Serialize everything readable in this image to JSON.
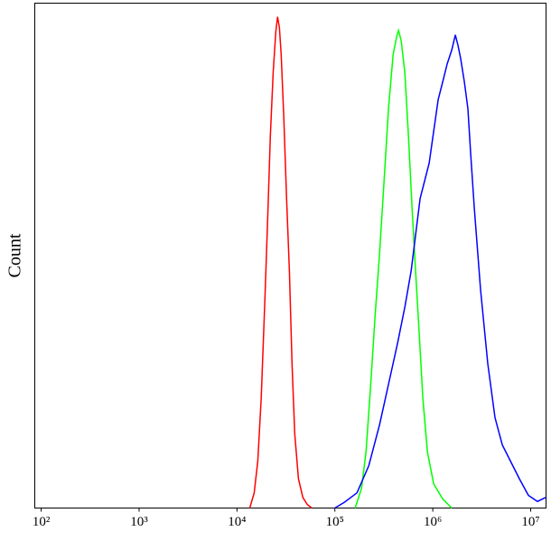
{
  "chart_data": {
    "type": "line",
    "ylabel": "Count",
    "xlog": true,
    "xlim": [
      86,
      14350000
    ],
    "ylim": [
      0,
      100
    ],
    "xticks": [
      {
        "value": 100,
        "label": "10²"
      },
      {
        "value": 1000,
        "label": "10³"
      },
      {
        "value": 10000,
        "label": "10⁴"
      },
      {
        "value": 100000,
        "label": "10⁵"
      },
      {
        "value": 1000000,
        "label": "10⁶"
      },
      {
        "value": 10000000,
        "label": "10⁷"
      }
    ],
    "series": [
      {
        "color": "#ff0000",
        "x": [
          13500,
          15000,
          16300,
          17700,
          19300,
          20600,
          21900,
          23400,
          24900,
          26000,
          27100,
          28300,
          30100,
          32100,
          34300,
          36500,
          38900,
          42400,
          47100,
          52300,
          58200
        ],
        "values": [
          0,
          3.0,
          9.3,
          21.8,
          41.5,
          57.6,
          73.7,
          86.2,
          94.3,
          97.3,
          95.2,
          89.8,
          77.3,
          61.2,
          46.9,
          28.6,
          14.7,
          5.8,
          2.1,
          0.7,
          0
        ]
      },
      {
        "color": "#00ff00",
        "x": [
          161000,
          187000,
          208000,
          231000,
          257000,
          286000,
          318000,
          353000,
          393000,
          428000,
          447000,
          476000,
          518000,
          564000,
          614000,
          668000,
          728000,
          792000,
          881000,
          1021000,
          1262000,
          1563000
        ],
        "values": [
          0,
          3.9,
          11.1,
          23.6,
          37.9,
          50.4,
          64.8,
          79.1,
          89.8,
          93.4,
          94.6,
          92.5,
          86.2,
          73.7,
          59.4,
          46.9,
          34.3,
          21.8,
          11.1,
          4.8,
          1.8,
          0
        ]
      },
      {
        "color": "#0000ff",
        "x": [
          100000,
          124000,
          168000,
          222000,
          286000,
          353000,
          437000,
          518000,
          601000,
          668000,
          743000,
          918000,
          1021000,
          1135000,
          1262000,
          1403000,
          1563000,
          1700000,
          1811000,
          1932000,
          2104000,
          2286000,
          2438000,
          2655000,
          3076000,
          3648000,
          4325000,
          5129000,
          6209000,
          7674000,
          9484000,
          11720000,
          14190000
        ],
        "values": [
          0,
          1.1,
          3.0,
          8.4,
          16.5,
          24.5,
          32.7,
          39.8,
          47.0,
          54.1,
          61.3,
          68.3,
          74.6,
          80.9,
          84.4,
          88.0,
          90.7,
          93.7,
          91.6,
          88.9,
          84.4,
          79.1,
          70.1,
          59.4,
          43.3,
          28.6,
          17.9,
          12.5,
          9.3,
          5.8,
          2.5,
          1.3,
          2.1
        ]
      }
    ]
  }
}
